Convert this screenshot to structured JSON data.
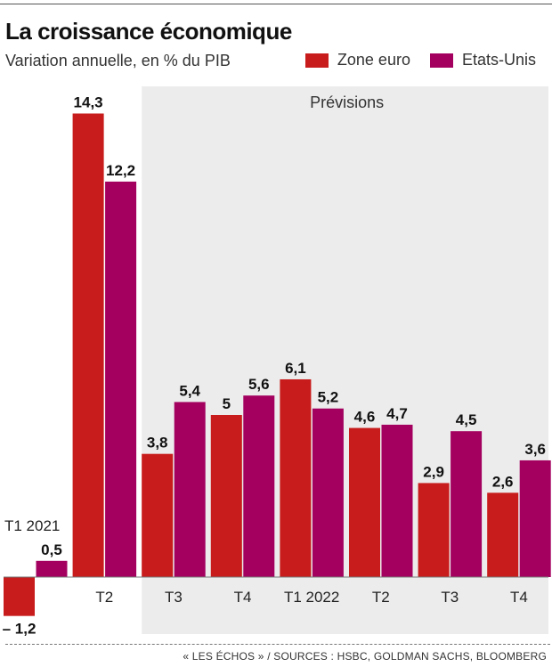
{
  "header": {
    "title": "La croissance économique",
    "subtitle": "Variation annuelle, en % du PIB"
  },
  "legend": {
    "items": [
      {
        "label": "Zone euro",
        "color": "#c81b1b"
      },
      {
        "label": "Etats-Unis",
        "color": "#a3005f"
      }
    ]
  },
  "footer": {
    "source": "« LES ÉCHOS » / SOURCES : HSBC, GOLDMAN SACHS, BLOOMBERG"
  },
  "chart_data": {
    "type": "bar",
    "categories": [
      "T1 2021",
      "T2",
      "T3",
      "T4",
      "T1 2022",
      "T2",
      "T3",
      "T4"
    ],
    "series": [
      {
        "name": "Zone euro",
        "color": "#c81b1b",
        "values": [
          -1.2,
          14.3,
          3.8,
          5,
          6.1,
          4.6,
          2.9,
          2.6
        ]
      },
      {
        "name": "Etats-Unis",
        "color": "#a3005f",
        "values": [
          0.5,
          12.2,
          5.4,
          5.6,
          5.2,
          4.7,
          4.5,
          3.6
        ]
      }
    ],
    "value_labels": [
      [
        "– 1,2",
        "14,3",
        "3,8",
        "5",
        "6,1",
        "4,6",
        "2,9",
        "2,6"
      ],
      [
        "0,5",
        "12,2",
        "5,4",
        "5,6",
        "5,2",
        "4,7",
        "4,5",
        "3,6"
      ]
    ],
    "forecast_label": "Prévisions",
    "forecast_color": "#ececec",
    "forecast_start_index": 2,
    "ylim": [
      -2,
      15
    ],
    "grid": false,
    "legend_position": "top-right"
  }
}
